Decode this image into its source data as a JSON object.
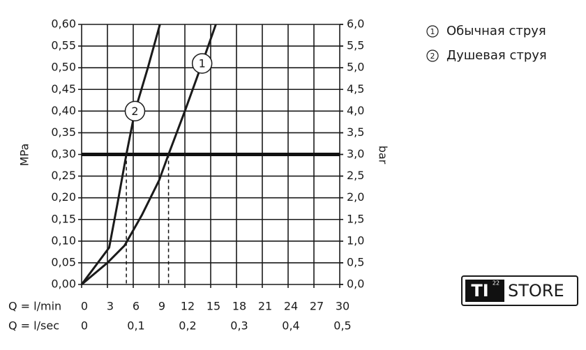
{
  "chart_data": {
    "type": "line",
    "xlabel": "Q = l/min",
    "x2label": "Q = l/sec",
    "ylabel": "MPa",
    "y2label": "bar",
    "xlim": [
      0,
      30
    ],
    "xticks": [
      0,
      3,
      6,
      9,
      12,
      15,
      18,
      21,
      24,
      27,
      30
    ],
    "x2lim": [
      0,
      0.5
    ],
    "x2ticks": [
      0,
      {
        "value": 0.1,
        "label": "0,1"
      },
      {
        "value": 0.2,
        "label": "0,2"
      },
      {
        "value": 0.3,
        "label": "0,3"
      },
      {
        "value": 0.4,
        "label": "0,4"
      },
      {
        "value": 0.5,
        "label": "0,5"
      }
    ],
    "ylim": [
      0,
      0.6
    ],
    "yticks": [
      {
        "value": 0,
        "label": "0,00"
      },
      {
        "value": 0.05,
        "label": "0,05"
      },
      {
        "value": 0.1,
        "label": "0,10"
      },
      {
        "value": 0.15,
        "label": "0,15"
      },
      {
        "value": 0.2,
        "label": "0,20"
      },
      {
        "value": 0.25,
        "label": "0,25"
      },
      {
        "value": 0.3,
        "label": "0,30"
      },
      {
        "value": 0.35,
        "label": "0,35"
      },
      {
        "value": 0.4,
        "label": "0,40"
      },
      {
        "value": 0.45,
        "label": "0,45"
      },
      {
        "value": 0.5,
        "label": "0,50"
      },
      {
        "value": 0.55,
        "label": "0,55"
      },
      {
        "value": 0.6,
        "label": "0,60"
      }
    ],
    "y2lim": [
      0,
      6
    ],
    "y2ticks": [
      {
        "value": 0,
        "label": "0,0"
      },
      {
        "value": 0.5,
        "label": "0,5"
      },
      {
        "value": 1,
        "label": "1,0"
      },
      {
        "value": 1.5,
        "label": "1,5"
      },
      {
        "value": 2,
        "label": "2,0"
      },
      {
        "value": 2.5,
        "label": "2,5"
      },
      {
        "value": 3,
        "label": "3,0"
      },
      {
        "value": 3.5,
        "label": "3,5"
      },
      {
        "value": 4,
        "label": "4,0"
      },
      {
        "value": 4.5,
        "label": "4,5"
      },
      {
        "value": 5,
        "label": "5,0"
      },
      {
        "value": 5.5,
        "label": "5,5"
      },
      {
        "value": 6,
        "label": "6,0"
      }
    ],
    "grid": true,
    "color": "#1a1a1a",
    "reference_y": 0.3,
    "drop_x": [
      5.2,
      10.1
    ],
    "series": [
      {
        "name": "Обычная струя",
        "label": "1",
        "x": [
          0,
          3,
          5,
          7,
          9,
          10.1,
          12,
          14,
          15.6
        ],
        "values": [
          0,
          0.05,
          0.09,
          0.16,
          0.24,
          0.3,
          0.4,
          0.51,
          0.6
        ]
      },
      {
        "name": "Душевая струя",
        "label": "2",
        "x": [
          0,
          3.2,
          4.2,
          5.2,
          6.2,
          7.7,
          9.1
        ],
        "values": [
          0,
          0.085,
          0.19,
          0.3,
          0.4,
          0.5,
          0.6
        ]
      }
    ]
  },
  "logo": {
    "mark": "TI",
    "superscript": "22",
    "text": "STORE"
  }
}
